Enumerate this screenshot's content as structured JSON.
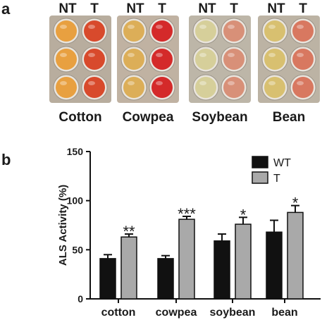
{
  "panel_a": {
    "letter": "a",
    "plates": [
      {
        "crop": "Cotton",
        "nt_label": "NT",
        "t_label": "T",
        "nt_color": "#e8a040",
        "t_color": "#d84a2c",
        "plate_bg": "#b8ad9e"
      },
      {
        "crop": "Cowpea",
        "nt_label": "NT",
        "t_label": "T",
        "nt_color": "#dcae58",
        "t_color": "#d42a2a",
        "plate_bg": "#c0b2a2"
      },
      {
        "crop": "Soybean",
        "nt_label": "NT",
        "t_label": "T",
        "nt_color": "#d6cf9a",
        "t_color": "#d89078",
        "plate_bg": "#bdb6a8"
      },
      {
        "crop": "Bean",
        "nt_label": "NT",
        "t_label": "T",
        "nt_color": "#d8c070",
        "t_color": "#d87860",
        "plate_bg": "#bcb3a4"
      }
    ]
  },
  "panel_b": {
    "letter": "b",
    "chart_data": {
      "type": "bar",
      "title": "",
      "ylabel": "ALS Activity (%)",
      "xlabel": "",
      "ylim": [
        0,
        150
      ],
      "yticks": [
        "0",
        "50",
        "100",
        "150"
      ],
      "categories": [
        "cotton",
        "cowpea",
        "soybean",
        "bean"
      ],
      "series": [
        {
          "name": "WT",
          "color": "#111111",
          "values": [
            41,
            41,
            59,
            68
          ],
          "errors": [
            4,
            3,
            7,
            12
          ]
        },
        {
          "name": "T",
          "color": "#a9a9a9",
          "values": [
            63,
            81,
            76,
            88
          ],
          "errors": [
            3,
            3,
            7,
            7
          ]
        }
      ],
      "significance": [
        "**",
        "***",
        "*",
        "*"
      ],
      "legend_position": "top-right"
    }
  }
}
